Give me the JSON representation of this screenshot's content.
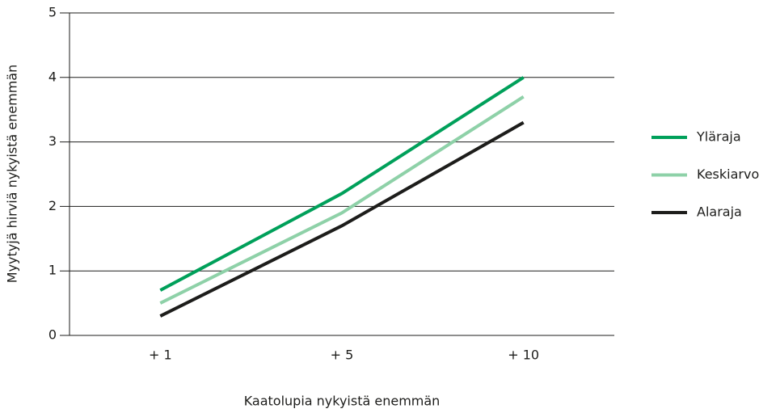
{
  "chart_data": {
    "type": "line",
    "x_label": "Kaatolupia nykyistä enemmän",
    "y_label": "Myytyjä hirviä nykyistä enemmän",
    "categories": [
      "+ 1",
      "+ 5",
      "+ 10"
    ],
    "series": [
      {
        "name": "Yläraja",
        "color": "#00a05a",
        "values": [
          0.7,
          2.2,
          4.0
        ]
      },
      {
        "name": "Keskiarvo",
        "color": "#8ed1a8",
        "values": [
          0.5,
          1.9,
          3.7
        ]
      },
      {
        "name": "Alaraja",
        "color": "#1d1d1b",
        "values": [
          0.3,
          1.7,
          3.3
        ]
      }
    ],
    "ylim": [
      0,
      5
    ],
    "yticks": [
      0,
      1,
      2,
      3,
      4,
      5
    ],
    "grid": true,
    "legend": "right"
  }
}
